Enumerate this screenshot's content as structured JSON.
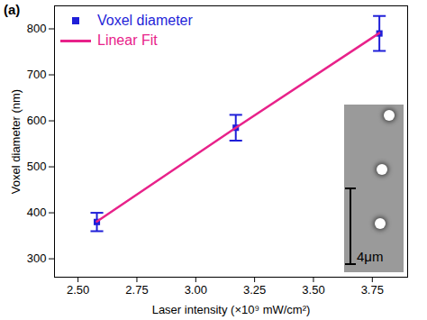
{
  "chart_data": {
    "type": "scatter",
    "x_label": "Laser intensity (×10⁹ mW/cm²)",
    "y_label": "Voxel diameter (nm)",
    "x": [
      2.58,
      3.17,
      3.78
    ],
    "series": [
      {
        "name": "Voxel diameter",
        "type": "scatter",
        "color": "#1f1fd8",
        "marker": "square",
        "values": [
          380,
          585,
          790
        ],
        "error": [
          20,
          28,
          38
        ]
      },
      {
        "name": "Linear Fit",
        "type": "line",
        "color": "#e8228a",
        "line_style": "solid",
        "values": [
          381,
          585,
          791
        ]
      }
    ],
    "xlim": [
      2.4,
      3.9
    ],
    "xticks": [
      {
        "value": 2.5,
        "label": "2.50"
      },
      {
        "value": 2.75,
        "label": "2.75"
      },
      {
        "value": 3,
        "label": "3.00"
      },
      {
        "value": 3.25,
        "label": "3.25"
      },
      {
        "value": 3.5,
        "label": "3.50"
      },
      {
        "value": 3.75,
        "label": "3.75"
      }
    ],
    "ylim": [
      260,
      850
    ],
    "yticks": [
      300,
      400,
      500,
      600,
      700,
      800
    ],
    "legend": "upper left",
    "annotations": [
      "(a)",
      "4μm"
    ]
  }
}
